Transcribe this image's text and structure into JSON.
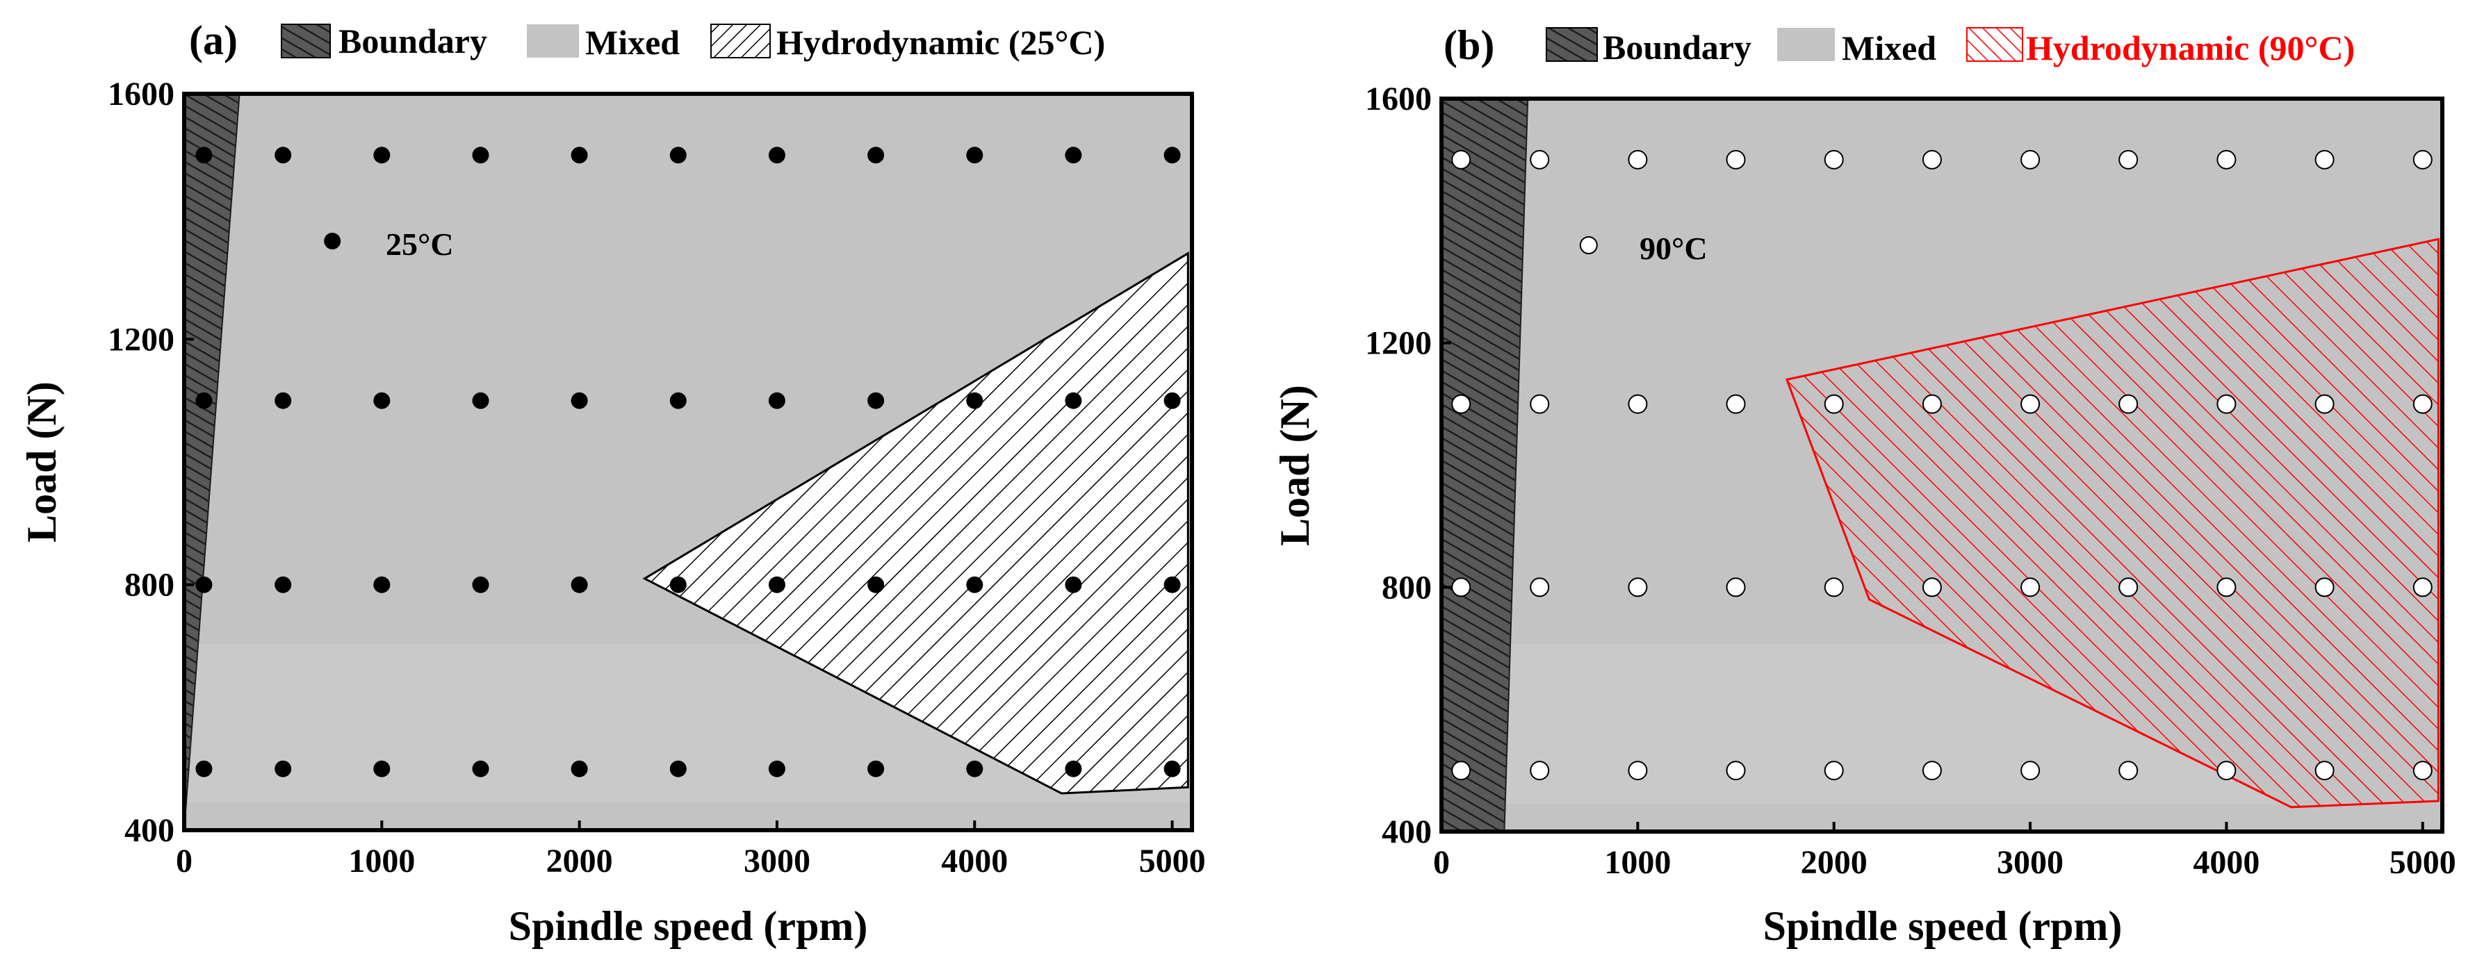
{
  "colors": {
    "boundary_fill": "#595959",
    "mixed_fill": "#c3c3c3",
    "mixed_fill_light": "#c9c9c9",
    "hydro_fill": "#ffffff",
    "hydro_line_a": "#000000",
    "hydro_line_b": "#ff0000",
    "dot_a": "#000000",
    "dot_b": "#ffffff"
  },
  "chart_data": [
    {
      "panel": "(a)",
      "type": "scatter",
      "title": "",
      "xlabel": "Spindle speed (rpm)",
      "ylabel": "Load (N)",
      "xlim": [
        0,
        5100
      ],
      "ylim": [
        400,
        1600
      ],
      "xticks": [
        "0",
        "1000",
        "2000",
        "3000",
        "4000",
        "5000"
      ],
      "xtick_values": [
        0,
        1000,
        2000,
        3000,
        4000,
        5000
      ],
      "yticks": [
        "400",
        "800",
        "1200",
        "1600"
      ],
      "ytick_values": [
        400,
        800,
        1200,
        1600
      ],
      "legend": [
        {
          "name": "Boundary",
          "style": "boundary"
        },
        {
          "name": "Mixed",
          "style": "mixed"
        },
        {
          "name": "Hydrodynamic (25°C)",
          "style": "hydro"
        }
      ],
      "annotation": {
        "text": "25°C",
        "marker_x": 750,
        "marker_y": 1360
      },
      "marker": "filled",
      "points_x": [
        100,
        500,
        1000,
        1500,
        2000,
        2500,
        3000,
        3500,
        4000,
        4500,
        5000
      ],
      "points_y": [
        500,
        800,
        1100,
        1500
      ],
      "regions": {
        "boundary": [
          [
            0,
            400
          ],
          [
            280,
            1600
          ],
          [
            0,
            1600
          ],
          [
            0,
            400
          ],
          [
            200,
            400
          ]
        ],
        "hydrodynamic": [
          [
            2330,
            810
          ],
          [
            5080,
            1340
          ],
          [
            5080,
            470
          ],
          [
            4440,
            460
          ]
        ]
      }
    },
    {
      "panel": "(b)",
      "type": "scatter",
      "title": "",
      "xlabel": "Spindle speed (rpm)",
      "ylabel": "Load (N)",
      "xlim": [
        0,
        5100
      ],
      "ylim": [
        400,
        1600
      ],
      "xticks": [
        "0",
        "1000",
        "2000",
        "3000",
        "4000",
        "5000"
      ],
      "xtick_values": [
        0,
        1000,
        2000,
        3000,
        4000,
        5000
      ],
      "yticks": [
        "400",
        "800",
        "1200",
        "1600"
      ],
      "ytick_values": [
        400,
        800,
        1200,
        1600
      ],
      "legend": [
        {
          "name": "Boundary",
          "style": "boundary"
        },
        {
          "name": "Mixed",
          "style": "mixed"
        },
        {
          "name": "Hydrodynamic (90°C)",
          "style": "hydro"
        }
      ],
      "annotation": {
        "text": "90°C",
        "marker_x": 750,
        "marker_y": 1360
      },
      "marker": "open",
      "points_x": [
        100,
        500,
        1000,
        1500,
        2000,
        2500,
        3000,
        3500,
        4000,
        4500,
        5000
      ],
      "points_y": [
        500,
        800,
        1100,
        1500
      ],
      "regions": {
        "boundary": [
          [
            0,
            400
          ],
          [
            0,
            1600
          ],
          [
            440,
            1600
          ],
          [
            320,
            400
          ]
        ],
        "hydrodynamic": [
          [
            1760,
            1140
          ],
          [
            5080,
            1370
          ],
          [
            5080,
            450
          ],
          [
            4330,
            440
          ],
          [
            2180,
            780
          ]
        ]
      }
    }
  ]
}
